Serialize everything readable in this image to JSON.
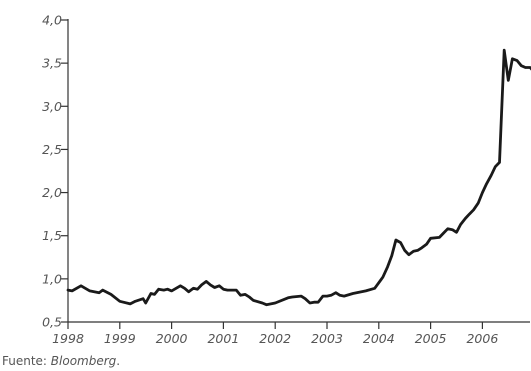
{
  "chart_data": {
    "type": "line",
    "title": "",
    "xlabel": "",
    "ylabel": "",
    "xlim": [
      1998,
      2006.95
    ],
    "ylim": [
      0.5,
      4.0
    ],
    "y_ticks": [
      "0,5",
      "1,0",
      "1,5",
      "2,0",
      "2,5",
      "3,0",
      "3,5",
      "4,0"
    ],
    "x_ticks": [
      "1998",
      "1999",
      "2000",
      "2001",
      "2002",
      "2003",
      "2004",
      "2005",
      "2006"
    ],
    "grid": false,
    "line_color": "#1a1a1a",
    "series": [
      {
        "x": [
          1998.0,
          1998.08,
          1998.25,
          1998.42,
          1998.6,
          1998.67,
          1998.83,
          1999.0,
          1999.2,
          1999.3,
          1999.45,
          1999.5,
          1999.6,
          1999.67,
          1999.75,
          1999.85,
          1999.92,
          2000.0,
          2000.17,
          2000.25,
          2000.33,
          2000.42,
          2000.5,
          2000.58,
          2000.67,
          2000.75,
          2000.83,
          2000.92,
          2001.0,
          2001.08,
          2001.25,
          2001.33,
          2001.42,
          2001.5,
          2001.58,
          2001.75,
          2001.83,
          2002.0,
          2002.25,
          2002.33,
          2002.5,
          2002.58,
          2002.67,
          2002.75,
          2002.83,
          2002.92,
          2003.0,
          2003.08,
          2003.17,
          2003.25,
          2003.33,
          2003.5,
          2003.75,
          2003.92,
          2004.08,
          2004.17,
          2004.25,
          2004.33,
          2004.42,
          2004.5,
          2004.58,
          2004.67,
          2004.75,
          2004.83,
          2004.92,
          2005.0,
          2005.17,
          2005.25,
          2005.33,
          2005.42,
          2005.5,
          2005.58,
          2005.67,
          2005.75,
          2005.83,
          2005.92,
          2006.0,
          2006.08,
          2006.17,
          2006.25,
          2006.33,
          2006.42,
          2006.5,
          2006.58,
          2006.67,
          2006.75,
          2006.83,
          2006.92,
          2006.95
        ],
        "values": [
          0.87,
          0.86,
          0.92,
          0.86,
          0.84,
          0.87,
          0.82,
          0.74,
          0.71,
          0.74,
          0.77,
          0.72,
          0.83,
          0.82,
          0.88,
          0.87,
          0.88,
          0.86,
          0.92,
          0.89,
          0.85,
          0.89,
          0.88,
          0.93,
          0.97,
          0.93,
          0.9,
          0.92,
          0.88,
          0.87,
          0.87,
          0.81,
          0.82,
          0.79,
          0.75,
          0.72,
          0.7,
          0.72,
          0.78,
          0.79,
          0.8,
          0.77,
          0.72,
          0.73,
          0.73,
          0.8,
          0.8,
          0.81,
          0.84,
          0.81,
          0.8,
          0.83,
          0.86,
          0.89,
          1.02,
          1.14,
          1.27,
          1.45,
          1.42,
          1.33,
          1.28,
          1.32,
          1.33,
          1.36,
          1.4,
          1.47,
          1.48,
          1.53,
          1.58,
          1.57,
          1.54,
          1.63,
          1.7,
          1.75,
          1.8,
          1.88,
          2.0,
          2.1,
          2.2,
          2.3,
          2.35,
          3.65,
          3.3,
          3.55,
          3.53,
          3.47,
          3.45,
          3.45,
          3.43
        ]
      }
    ]
  },
  "source": {
    "prefix": "Fuente: ",
    "name": "Bloomberg",
    "suffix": "."
  }
}
